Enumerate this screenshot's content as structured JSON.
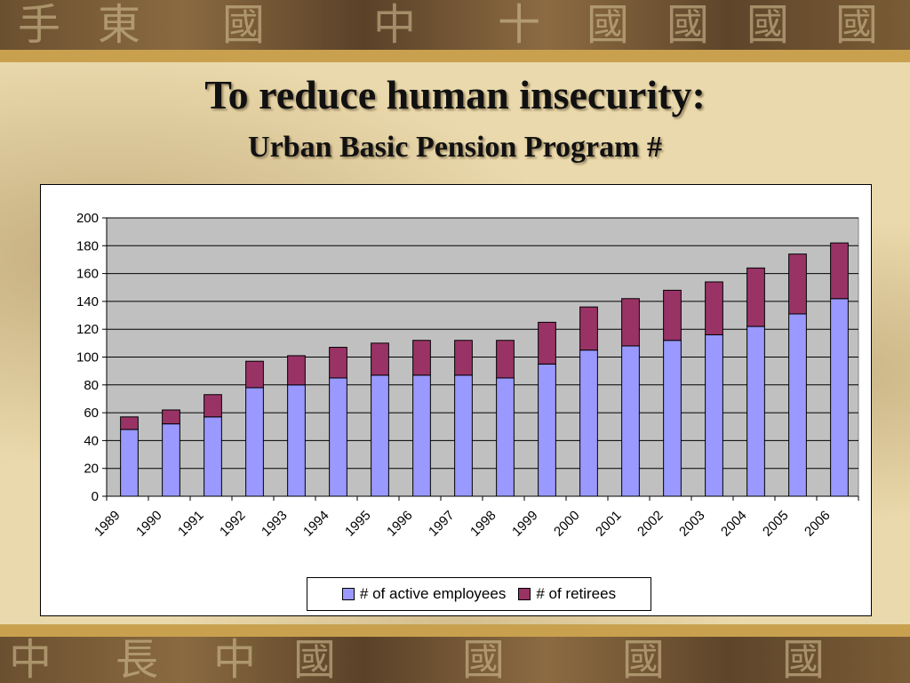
{
  "slide": {
    "title": "To reduce human insecurity:",
    "subtitle": "Urban Basic Pension Program #"
  },
  "colors": {
    "active": "#9999ff",
    "retirees": "#993366",
    "plot_background": "#c0c0c0"
  },
  "chart_data": {
    "type": "bar",
    "stacked": true,
    "categories": [
      "1989",
      "1990",
      "1991",
      "1992",
      "1993",
      "1994",
      "1995",
      "1996",
      "1997",
      "1998",
      "1999",
      "2000",
      "2001",
      "2002",
      "2003",
      "2004",
      "2005",
      "2006"
    ],
    "series": [
      {
        "name": "# of active employees",
        "values": [
          48,
          52,
          57,
          78,
          80,
          85,
          87,
          87,
          87,
          85,
          95,
          105,
          108,
          112,
          116,
          122,
          131,
          142
        ]
      },
      {
        "name": "# of retirees",
        "values": [
          9,
          10,
          16,
          19,
          21,
          22,
          23,
          25,
          25,
          27,
          30,
          31,
          34,
          36,
          38,
          42,
          43,
          40
        ]
      }
    ],
    "ylim": [
      0,
      200
    ],
    "yticks": [
      0,
      20,
      40,
      60,
      80,
      100,
      120,
      140,
      160,
      180,
      200
    ],
    "grid": true,
    "legend_position": "bottom"
  }
}
